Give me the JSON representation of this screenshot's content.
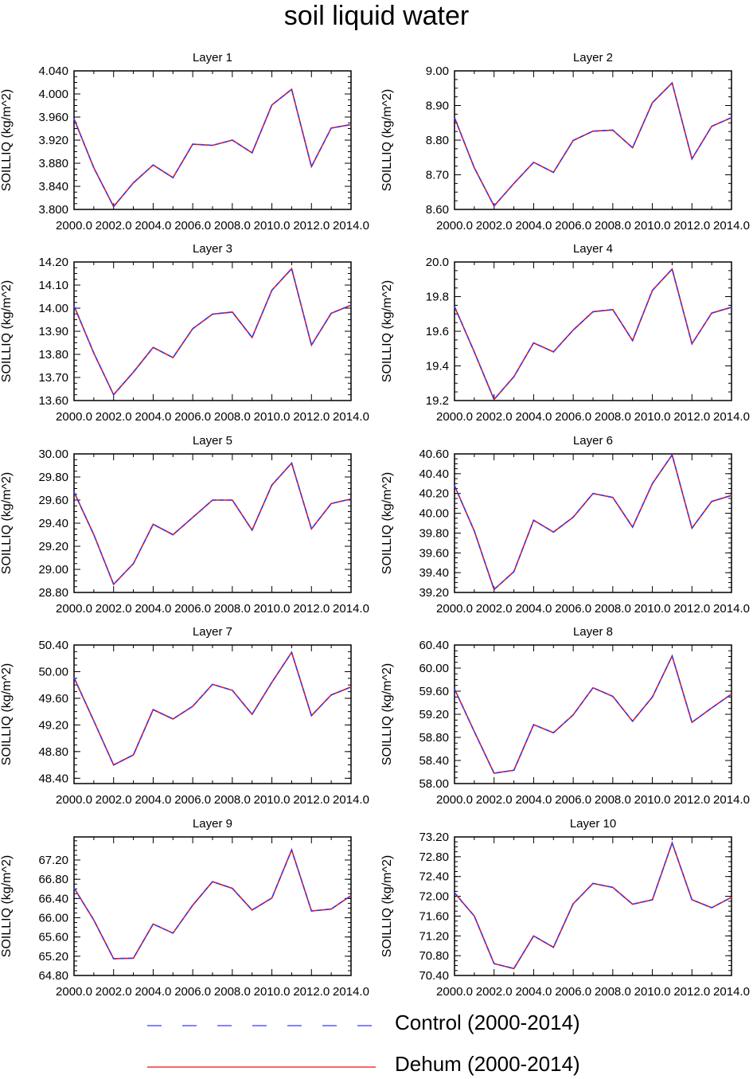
{
  "figure": {
    "title": "soil liquid water"
  },
  "legend": {
    "position": "bottom",
    "entries": [
      {
        "label": "Control (2000-2014)",
        "color": "#3a3af0",
        "style": "dashed"
      },
      {
        "label": "Dehum (2000-2014)",
        "color": "#ee1111",
        "style": "solid"
      }
    ]
  },
  "chart_data": [
    {
      "type": "line",
      "title": "Layer 1",
      "ylabel": "SOILLIQ  (kg/m^2)",
      "xlim": [
        2000,
        2014
      ],
      "ylim": [
        3.8,
        4.04
      ],
      "xticks": [
        "2000.0",
        "2002.0",
        "2004.0",
        "2006.0",
        "2008.0",
        "2010.0",
        "2012.0",
        "2014.0"
      ],
      "yticks": [
        "3.800",
        "3.840",
        "3.880",
        "3.920",
        "3.960",
        "4.000",
        "4.040"
      ],
      "ytick_values": [
        3.8,
        3.84,
        3.88,
        3.92,
        3.96,
        4.0,
        4.04
      ],
      "x": [
        2000,
        2001,
        2002,
        2003,
        2004,
        2005,
        2006,
        2007,
        2008,
        2009,
        2010,
        2011,
        2012,
        2013,
        2014
      ],
      "values": [
        3.957,
        3.872,
        3.805,
        3.846,
        3.877,
        3.855,
        3.913,
        3.911,
        3.92,
        3.898,
        3.981,
        4.008,
        3.874,
        3.941,
        3.947
      ]
    },
    {
      "type": "line",
      "title": "Layer 2",
      "ylabel": "SOILLIQ  (kg/m^2)",
      "xlim": [
        2000,
        2014
      ],
      "ylim": [
        8.6,
        9.0
      ],
      "xticks": [
        "2000.0",
        "2002.0",
        "2004.0",
        "2006.0",
        "2008.0",
        "2010.0",
        "2012.0",
        "2014.0"
      ],
      "yticks": [
        "8.60",
        "8.70",
        "8.80",
        "8.90",
        "9.00"
      ],
      "ytick_values": [
        8.6,
        8.7,
        8.8,
        8.9,
        9.0
      ],
      "x": [
        2000,
        2001,
        2002,
        2003,
        2004,
        2005,
        2006,
        2007,
        2008,
        2009,
        2010,
        2011,
        2012,
        2013,
        2014
      ],
      "values": [
        8.865,
        8.72,
        8.61,
        8.675,
        8.736,
        8.707,
        8.799,
        8.826,
        8.829,
        8.778,
        8.908,
        8.965,
        8.746,
        8.84,
        8.865
      ]
    },
    {
      "type": "line",
      "title": "Layer 3",
      "ylabel": "SOILLIQ  (kg/m^2)",
      "xlim": [
        2000,
        2014
      ],
      "ylim": [
        13.6,
        14.2
      ],
      "xticks": [
        "2000.0",
        "2002.0",
        "2004.0",
        "2006.0",
        "2008.0",
        "2010.0",
        "2012.0",
        "2014.0"
      ],
      "yticks": [
        "13.60",
        "13.70",
        "13.80",
        "13.90",
        "14.00",
        "14.10",
        "14.20"
      ],
      "ytick_values": [
        13.6,
        13.7,
        13.8,
        13.9,
        14.0,
        14.1,
        14.2
      ],
      "x": [
        2000,
        2001,
        2002,
        2003,
        2004,
        2005,
        2006,
        2007,
        2008,
        2009,
        2010,
        2011,
        2012,
        2013,
        2014
      ],
      "values": [
        14.01,
        13.805,
        13.625,
        13.723,
        13.83,
        13.786,
        13.911,
        13.974,
        13.983,
        13.873,
        14.078,
        14.171,
        13.84,
        13.978,
        14.013
      ]
    },
    {
      "type": "line",
      "title": "Layer 4",
      "ylabel": "SOILLIQ  (kg/m^2)",
      "xlim": [
        2000,
        2014
      ],
      "ylim": [
        19.2,
        20.0
      ],
      "xticks": [
        "2000.0",
        "2002.0",
        "2004.0",
        "2006.0",
        "2008.0",
        "2010.0",
        "2012.0",
        "2014.0"
      ],
      "yticks": [
        "19.2",
        "19.4",
        "19.6",
        "19.8",
        "20.0"
      ],
      "ytick_values": [
        19.2,
        19.4,
        19.6,
        19.8,
        20.0
      ],
      "x": [
        2000,
        2001,
        2002,
        2003,
        2004,
        2005,
        2006,
        2007,
        2008,
        2009,
        2010,
        2011,
        2012,
        2013,
        2014
      ],
      "values": [
        19.743,
        19.48,
        19.206,
        19.338,
        19.533,
        19.481,
        19.607,
        19.713,
        19.725,
        19.546,
        19.836,
        19.959,
        19.528,
        19.705,
        19.739
      ]
    },
    {
      "type": "line",
      "title": "Layer 5",
      "ylabel": "SOILLIQ  (kg/m^2)",
      "xlim": [
        2000,
        2014
      ],
      "ylim": [
        28.8,
        30.0
      ],
      "xticks": [
        "2000.0",
        "2002.0",
        "2004.0",
        "2006.0",
        "2008.0",
        "2010.0",
        "2012.0",
        "2014.0"
      ],
      "yticks": [
        "28.80",
        "29.00",
        "29.20",
        "29.40",
        "29.60",
        "29.80",
        "30.00"
      ],
      "ytick_values": [
        28.8,
        29.0,
        29.2,
        29.4,
        29.6,
        29.8,
        30.0
      ],
      "x": [
        2000,
        2001,
        2002,
        2003,
        2004,
        2005,
        2006,
        2007,
        2008,
        2009,
        2010,
        2011,
        2012,
        2013,
        2014
      ],
      "values": [
        29.67,
        29.3,
        28.87,
        29.05,
        29.39,
        29.3,
        29.45,
        29.6,
        29.6,
        29.34,
        29.73,
        29.92,
        29.35,
        29.57,
        29.61
      ]
    },
    {
      "type": "line",
      "title": "Layer 6",
      "ylabel": "SOILLIQ  (kg/m^2)",
      "xlim": [
        2000,
        2014
      ],
      "ylim": [
        39.2,
        40.6
      ],
      "xticks": [
        "2000.0",
        "2002.0",
        "2004.0",
        "2006.0",
        "2008.0",
        "2010.0",
        "2012.0",
        "2014.0"
      ],
      "yticks": [
        "39.20",
        "39.40",
        "39.60",
        "39.80",
        "40.00",
        "40.20",
        "40.40",
        "40.60"
      ],
      "ytick_values": [
        39.2,
        39.4,
        39.6,
        39.8,
        40.0,
        40.2,
        40.4,
        40.6
      ],
      "x": [
        2000,
        2001,
        2002,
        2003,
        2004,
        2005,
        2006,
        2007,
        2008,
        2009,
        2010,
        2011,
        2012,
        2013,
        2014
      ],
      "values": [
        40.28,
        39.82,
        39.23,
        39.41,
        39.93,
        39.81,
        39.96,
        40.2,
        40.16,
        39.86,
        40.3,
        40.59,
        39.85,
        40.12,
        40.18
      ]
    },
    {
      "type": "line",
      "title": "Layer 7",
      "ylabel": "SOILLIQ  (kg/m^2)",
      "xlim": [
        2000,
        2014
      ],
      "ylim": [
        48.32,
        50.4
      ],
      "xticks": [
        "2000.0",
        "2002.0",
        "2004.0",
        "2006.0",
        "2008.0",
        "2010.0",
        "2012.0",
        "2014.0"
      ],
      "yticks": [
        "48.40",
        "48.80",
        "49.20",
        "49.60",
        "50.00",
        "50.40"
      ],
      "ytick_values": [
        48.4,
        48.8,
        49.2,
        49.6,
        50.0,
        50.4
      ],
      "x": [
        2000,
        2001,
        2002,
        2003,
        2004,
        2005,
        2006,
        2007,
        2008,
        2009,
        2010,
        2011,
        2012,
        2013,
        2014
      ],
      "values": [
        49.91,
        49.26,
        48.6,
        48.75,
        49.43,
        49.29,
        49.48,
        49.81,
        49.72,
        49.36,
        49.84,
        50.29,
        49.34,
        49.65,
        49.77
      ]
    },
    {
      "type": "line",
      "title": "Layer 8",
      "ylabel": "SOILLIQ  (kg/m^2)",
      "xlim": [
        2000,
        2014
      ],
      "ylim": [
        58.0,
        60.4
      ],
      "xticks": [
        "2000.0",
        "2002.0",
        "2004.0",
        "2006.0",
        "2008.0",
        "2010.0",
        "2012.0",
        "2014.0"
      ],
      "yticks": [
        "58.00",
        "58.40",
        "58.80",
        "59.20",
        "59.60",
        "60.00",
        "60.40"
      ],
      "ytick_values": [
        58.0,
        58.4,
        58.8,
        59.2,
        59.6,
        60.0,
        60.4
      ],
      "x": [
        2000,
        2001,
        2002,
        2003,
        2004,
        2005,
        2006,
        2007,
        2008,
        2009,
        2010,
        2011,
        2012,
        2013,
        2014
      ],
      "values": [
        59.64,
        58.9,
        58.18,
        58.23,
        59.02,
        58.88,
        59.19,
        59.66,
        59.51,
        59.08,
        59.5,
        60.21,
        59.06,
        59.31,
        59.55
      ]
    },
    {
      "type": "line",
      "title": "Layer 9",
      "ylabel": "SOILLIQ  (kg/m^2)",
      "xlim": [
        2000,
        2014
      ],
      "ylim": [
        64.8,
        67.68
      ],
      "xticks": [
        "2000.0",
        "2002.0",
        "2004.0",
        "2006.0",
        "2008.0",
        "2010.0",
        "2012.0",
        "2014.0"
      ],
      "yticks": [
        "64.80",
        "65.20",
        "65.60",
        "66.00",
        "66.40",
        "66.80",
        "67.20"
      ],
      "ytick_values": [
        64.8,
        65.2,
        65.6,
        66.0,
        66.4,
        66.8,
        67.2
      ],
      "x": [
        2000,
        2001,
        2002,
        2003,
        2004,
        2005,
        2006,
        2007,
        2008,
        2009,
        2010,
        2011,
        2012,
        2013,
        2014
      ],
      "values": [
        66.62,
        65.95,
        65.15,
        65.16,
        65.87,
        65.68,
        66.26,
        66.75,
        66.61,
        66.16,
        66.41,
        67.41,
        66.14,
        66.18,
        66.46
      ]
    },
    {
      "type": "line",
      "title": "Layer 10",
      "ylabel": "SOILLIQ  (kg/m^2)",
      "xlim": [
        2000,
        2014
      ],
      "ylim": [
        70.4,
        73.2
      ],
      "xticks": [
        "2000.0",
        "2002.0",
        "2004.0",
        "2006.0",
        "2008.0",
        "2010.0",
        "2012.0",
        "2014.0"
      ],
      "yticks": [
        "70.40",
        "70.80",
        "71.20",
        "71.60",
        "72.00",
        "72.40",
        "72.80",
        "73.20"
      ],
      "ytick_values": [
        70.4,
        70.8,
        71.2,
        71.6,
        72.0,
        72.4,
        72.8,
        73.2
      ],
      "x": [
        2000,
        2001,
        2002,
        2003,
        2004,
        2005,
        2006,
        2007,
        2008,
        2009,
        2010,
        2011,
        2012,
        2013,
        2014
      ],
      "values": [
        72.07,
        71.6,
        70.64,
        70.54,
        71.2,
        70.97,
        71.85,
        72.26,
        72.18,
        71.84,
        71.93,
        73.08,
        71.93,
        71.77,
        71.98
      ]
    }
  ]
}
